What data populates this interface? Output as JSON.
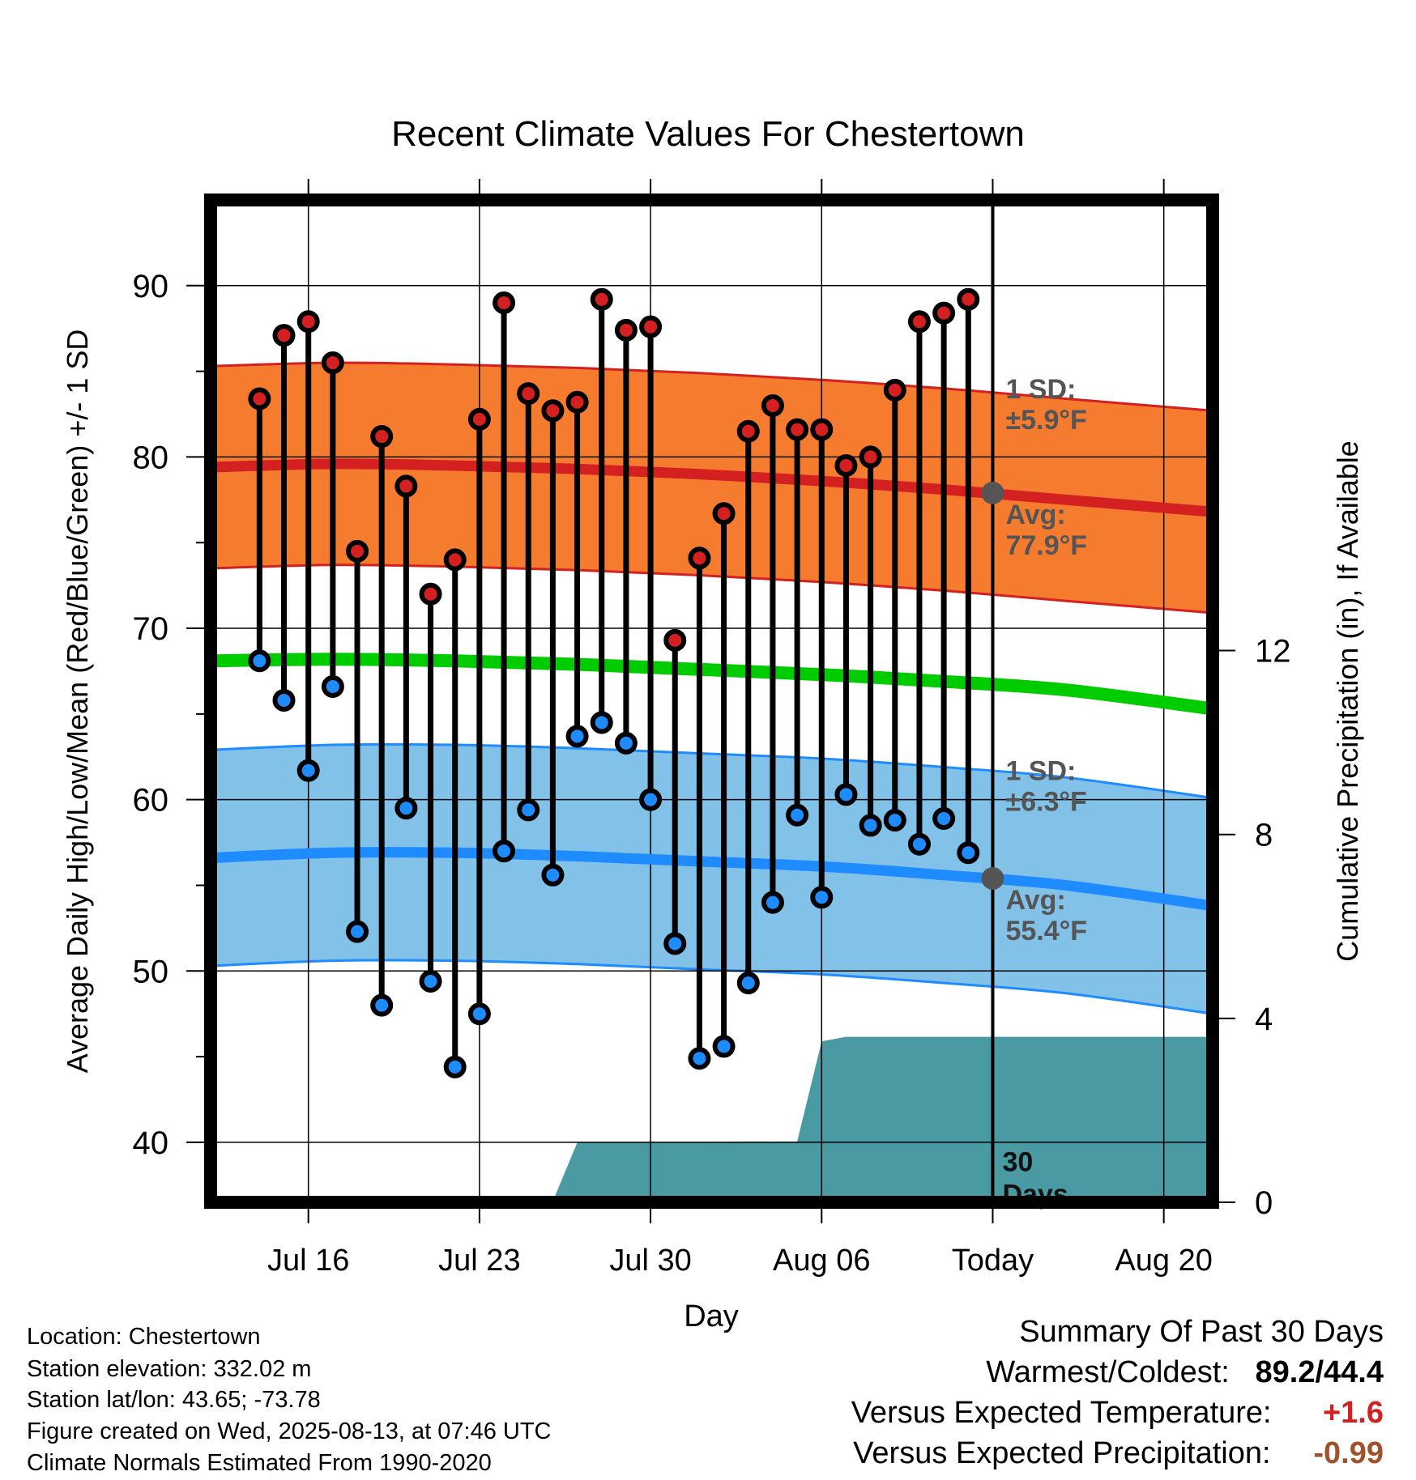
{
  "chart_data": {
    "type": "line",
    "title": "Recent Climate Values For Chestertown",
    "xlabel": "Day",
    "ylabel": "Average Daily High/Low/Mean (Red/Blue/Green) +/- 1 SD",
    "y2label": "Cumulative Precipitation (in), If Available",
    "ylim": [
      36.5,
      95
    ],
    "y2lim": [
      0,
      21.8
    ],
    "xlim": [
      "2025-07-12",
      "2025-08-22"
    ],
    "yticks": [
      "40",
      "50",
      "60",
      "70",
      "80",
      "90"
    ],
    "y2ticks": [
      "0",
      "4",
      "8",
      "12"
    ],
    "xticks": [
      {
        "date": "2025-07-16",
        "label": "Jul 16"
      },
      {
        "date": "2025-07-23",
        "label": "Jul 23"
      },
      {
        "date": "2025-07-30",
        "label": "Jul 30"
      },
      {
        "date": "2025-08-06",
        "label": "Aug 06"
      },
      {
        "date": "2025-08-13",
        "label": "Today"
      },
      {
        "date": "2025-08-20",
        "label": "Aug 20"
      }
    ],
    "grid": true,
    "today": "2025-08-13",
    "dates": [
      "2025-07-14",
      "2025-07-15",
      "2025-07-16",
      "2025-07-17",
      "2025-07-18",
      "2025-07-19",
      "2025-07-20",
      "2025-07-21",
      "2025-07-22",
      "2025-07-23",
      "2025-07-24",
      "2025-07-25",
      "2025-07-26",
      "2025-07-27",
      "2025-07-28",
      "2025-07-29",
      "2025-07-30",
      "2025-07-31",
      "2025-08-01",
      "2025-08-02",
      "2025-08-03",
      "2025-08-04",
      "2025-08-05",
      "2025-08-06",
      "2025-08-07",
      "2025-08-08",
      "2025-08-09",
      "2025-08-10",
      "2025-08-11",
      "2025-08-12"
    ],
    "highs": [
      83.4,
      87.1,
      87.9,
      85.5,
      74.5,
      81.2,
      78.3,
      72.0,
      74.0,
      82.2,
      89.0,
      83.7,
      82.7,
      83.2,
      89.2,
      87.4,
      87.6,
      69.3,
      74.1,
      76.7,
      81.5,
      83.0,
      81.6,
      81.6,
      79.5,
      80.0,
      83.9,
      87.9,
      88.4,
      89.2
    ],
    "lows": [
      68.1,
      65.8,
      61.7,
      66.6,
      52.3,
      48.0,
      59.5,
      49.4,
      44.4,
      47.5,
      57.0,
      59.4,
      55.6,
      63.7,
      64.5,
      63.3,
      60.0,
      51.6,
      44.9,
      45.6,
      49.3,
      54.0,
      59.1,
      54.3,
      60.3,
      58.5,
      58.8,
      57.4,
      58.9,
      56.9
    ],
    "normals": {
      "dates": [
        "2025-07-12",
        "2025-07-17",
        "2025-07-22",
        "2025-07-27",
        "2025-08-01",
        "2025-08-06",
        "2025-08-11",
        "2025-08-16",
        "2025-08-22"
      ],
      "high_avg": [
        79.4,
        79.6,
        79.5,
        79.3,
        79.0,
        78.6,
        78.1,
        77.5,
        76.8
      ],
      "high_sd": 5.9,
      "low_avg": [
        56.6,
        56.9,
        56.9,
        56.7,
        56.4,
        56.1,
        55.6,
        55.0,
        53.8
      ],
      "low_sd": 6.3,
      "mean_avg": [
        68.1,
        68.2,
        68.1,
        67.9,
        67.6,
        67.3,
        66.9,
        66.4,
        65.3
      ]
    },
    "precip_cumulative": {
      "dates": [
        "2025-07-12",
        "2025-07-16",
        "2025-07-26",
        "2025-07-27",
        "2025-08-05",
        "2025-08-06",
        "2025-08-07",
        "2025-08-22"
      ],
      "values": [
        0,
        0.02,
        0.02,
        1.3,
        1.32,
        3.5,
        3.6,
        3.6
      ]
    },
    "series": [
      {
        "name": "Red",
        "key": "highs",
        "color": "#e41a1c"
      },
      {
        "name": "Blue",
        "key": "lows",
        "color": "#1e90ff"
      },
      {
        "name": "Green",
        "key": "mean",
        "color": "#00cc00"
      }
    ],
    "annotations": {
      "high_sd": {
        "line1": "1 SD:",
        "line2": "±5.9°F"
      },
      "high_avg": {
        "line1": "Avg:",
        "line2": "77.9°F",
        "value": 77.9
      },
      "low_sd": {
        "line1": "1 SD:",
        "line2": "±6.3°F"
      },
      "low_avg": {
        "line1": "Avg:",
        "line2": "55.4°F",
        "value": 55.4
      },
      "precip_days": {
        "line1": "30",
        "line2": "Days"
      }
    }
  },
  "colors": {
    "high_band": "#f57c2e",
    "high_line": "#d42020",
    "low_band": "#82c1e8",
    "low_line": "#1e8cff",
    "mean_line": "#00cc00",
    "precip": "#4a9aa4",
    "high_dot": "#d42020",
    "low_dot": "#1e8cff",
    "annotation": "#555555"
  },
  "info": {
    "location": "Location: Chestertown",
    "elevation": "Station elevation: 332.02 m",
    "latlon": "Station lat/lon: 43.65; -73.78",
    "created": "Figure created on Wed, 2025-08-13, at 07:46 UTC",
    "normals": "Climate Normals Estimated From 1990-2020"
  },
  "summary": {
    "title": "Summary Of Past 30 Days",
    "warm_cold_label": "Warmest/Coldest:",
    "warm_cold_value": "89.2/44.4",
    "temp_label": "Versus Expected Temperature:",
    "temp_value": "+1.6",
    "temp_color": "#d42020",
    "precip_label": "Versus Expected Precipitation:",
    "precip_value": "-0.99",
    "precip_color": "#a0522d"
  }
}
